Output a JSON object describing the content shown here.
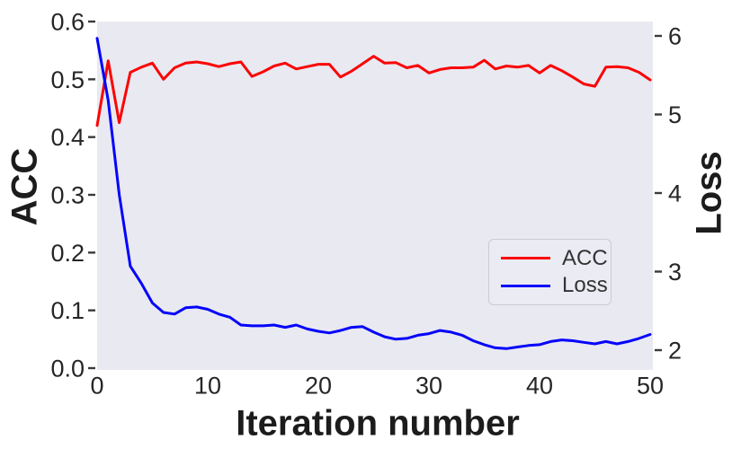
{
  "figure": {
    "background": "#ffffff",
    "plot_background": "#e9e9f1",
    "tick_color": "#3a3a3a",
    "text_color": "#262626"
  },
  "colors": {
    "acc": "#fb0505",
    "loss": "#0404fb"
  },
  "axes": {
    "x": {
      "label": "Iteration number",
      "tick_labels": [
        "0",
        "10",
        "20",
        "30",
        "40",
        "50"
      ],
      "tick_values": [
        0,
        10,
        20,
        30,
        40,
        50
      ],
      "range": [
        0,
        50
      ]
    },
    "y_left": {
      "label": "ACC",
      "tick_labels": [
        "0.0",
        "0.1",
        "0.2",
        "0.3",
        "0.4",
        "0.5",
        "0.6"
      ],
      "tick_values": [
        0.0,
        0.1,
        0.2,
        0.3,
        0.4,
        0.5,
        0.6
      ],
      "range": [
        0.0,
        0.6
      ]
    },
    "y_right": {
      "label": "Loss",
      "tick_labels": [
        "2",
        "3",
        "4",
        "5",
        "6"
      ],
      "tick_values": [
        2,
        3,
        4,
        5,
        6
      ],
      "range": [
        1.75,
        6.17
      ]
    }
  },
  "legend": {
    "entries": [
      {
        "label": "ACC",
        "color": "#fb0505"
      },
      {
        "label": "Loss",
        "color": "#0404fb"
      }
    ]
  },
  "chart_data": {
    "type": "line",
    "title": "",
    "xlabel": "Iteration number",
    "ylabel_left": "ACC",
    "ylabel_right": "Loss",
    "x_range": [
      0,
      50
    ],
    "y_left_range": [
      0.0,
      0.6
    ],
    "y_right_range": [
      1.75,
      6.17
    ],
    "grid": false,
    "legend_position": "center-right",
    "x": [
      0,
      1,
      2,
      3,
      4,
      5,
      6,
      7,
      8,
      9,
      10,
      11,
      12,
      13,
      14,
      15,
      16,
      17,
      18,
      19,
      20,
      21,
      22,
      23,
      24,
      25,
      26,
      27,
      28,
      29,
      30,
      31,
      32,
      33,
      34,
      35,
      36,
      37,
      38,
      39,
      40,
      41,
      42,
      43,
      44,
      45,
      46,
      47,
      48,
      49,
      50
    ],
    "series": [
      {
        "name": "ACC",
        "axis": "left",
        "color": "#fb0505",
        "values": [
          0.42,
          0.532,
          0.425,
          0.512,
          0.521,
          0.528,
          0.5,
          0.52,
          0.528,
          0.53,
          0.527,
          0.522,
          0.527,
          0.53,
          0.505,
          0.513,
          0.523,
          0.528,
          0.518,
          0.522,
          0.526,
          0.526,
          0.504,
          0.514,
          0.527,
          0.54,
          0.528,
          0.529,
          0.52,
          0.524,
          0.511,
          0.517,
          0.52,
          0.52,
          0.521,
          0.533,
          0.518,
          0.523,
          0.521,
          0.524,
          0.511,
          0.524,
          0.515,
          0.504,
          0.492,
          0.488,
          0.521,
          0.522,
          0.52,
          0.512,
          0.499
        ]
      },
      {
        "name": "Loss",
        "axis": "right",
        "color": "#0404fb",
        "values": [
          5.97,
          5.18,
          3.98,
          3.07,
          2.85,
          2.6,
          2.48,
          2.46,
          2.54,
          2.55,
          2.52,
          2.46,
          2.42,
          2.32,
          2.31,
          2.31,
          2.32,
          2.29,
          2.32,
          2.27,
          2.24,
          2.22,
          2.25,
          2.29,
          2.3,
          2.23,
          2.17,
          2.14,
          2.15,
          2.19,
          2.21,
          2.25,
          2.23,
          2.19,
          2.12,
          2.07,
          2.03,
          2.02,
          2.04,
          2.06,
          2.07,
          2.11,
          2.13,
          2.12,
          2.1,
          2.08,
          2.11,
          2.08,
          2.11,
          2.15,
          2.2
        ]
      }
    ]
  }
}
